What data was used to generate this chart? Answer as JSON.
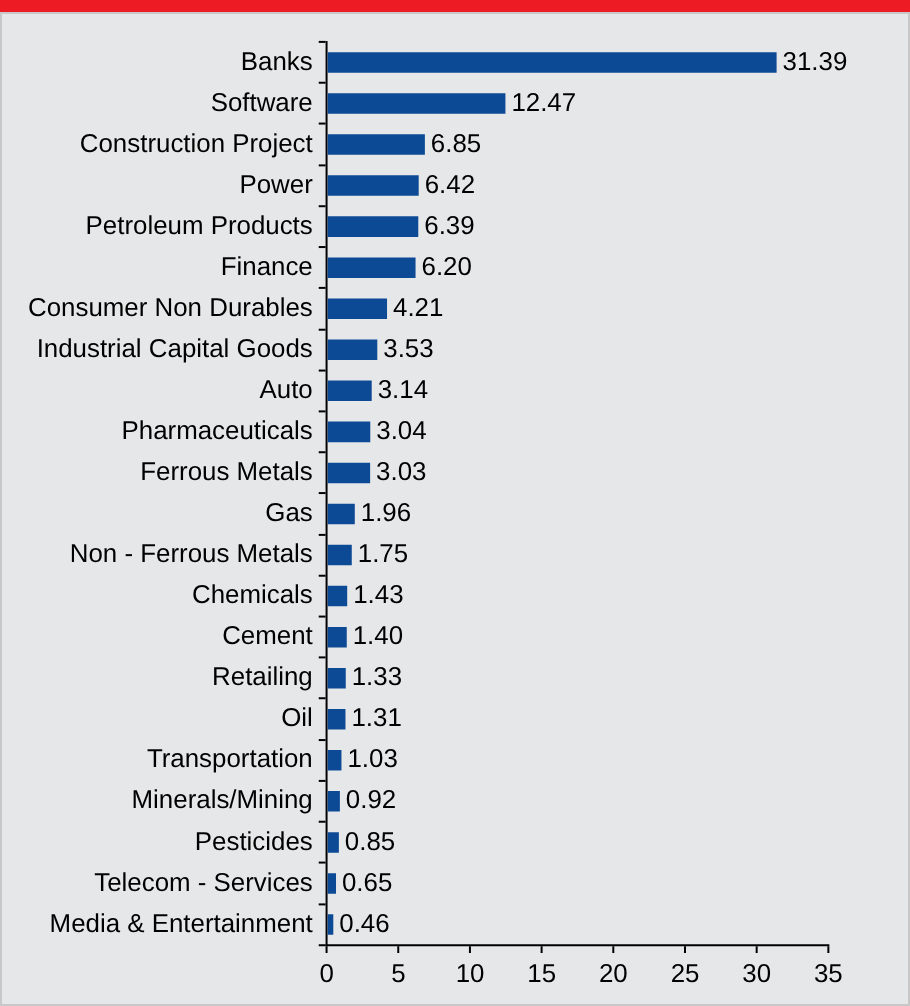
{
  "chart_data": {
    "type": "bar",
    "orientation": "horizontal",
    "categories": [
      "Banks",
      "Software",
      "Construction Project",
      "Power",
      "Petroleum Products",
      "Finance",
      "Consumer Non Durables",
      "Industrial Capital Goods",
      "Auto",
      "Pharmaceuticals",
      "Ferrous Metals",
      "Gas",
      "Non - Ferrous Metals",
      "Chemicals",
      "Cement",
      "Retailing",
      "Oil",
      "Transportation",
      "Minerals/Mining",
      "Pesticides",
      "Telecom - Services",
      "Media & Entertainment"
    ],
    "values": [
      31.39,
      12.47,
      6.85,
      6.42,
      6.39,
      6.2,
      4.21,
      3.53,
      3.14,
      3.04,
      3.03,
      1.96,
      1.75,
      1.43,
      1.4,
      1.33,
      1.31,
      1.03,
      0.92,
      0.85,
      0.65,
      0.46
    ],
    "value_labels": [
      "31.39",
      "12.47",
      "6.85",
      "6.42",
      "6.39",
      "6.20",
      "4.21",
      "3.53",
      "3.14",
      "3.04",
      "3.03",
      "1.96",
      "1.75",
      "1.43",
      "1.40",
      "1.33",
      "1.31",
      "1.03",
      "0.92",
      "0.85",
      "0.65",
      "0.46"
    ],
    "color": "#0d4a96",
    "xlim": [
      0,
      35
    ],
    "xticks": [
      0,
      5,
      10,
      15,
      20,
      25,
      30,
      35
    ],
    "grid": false,
    "legend": false
  }
}
